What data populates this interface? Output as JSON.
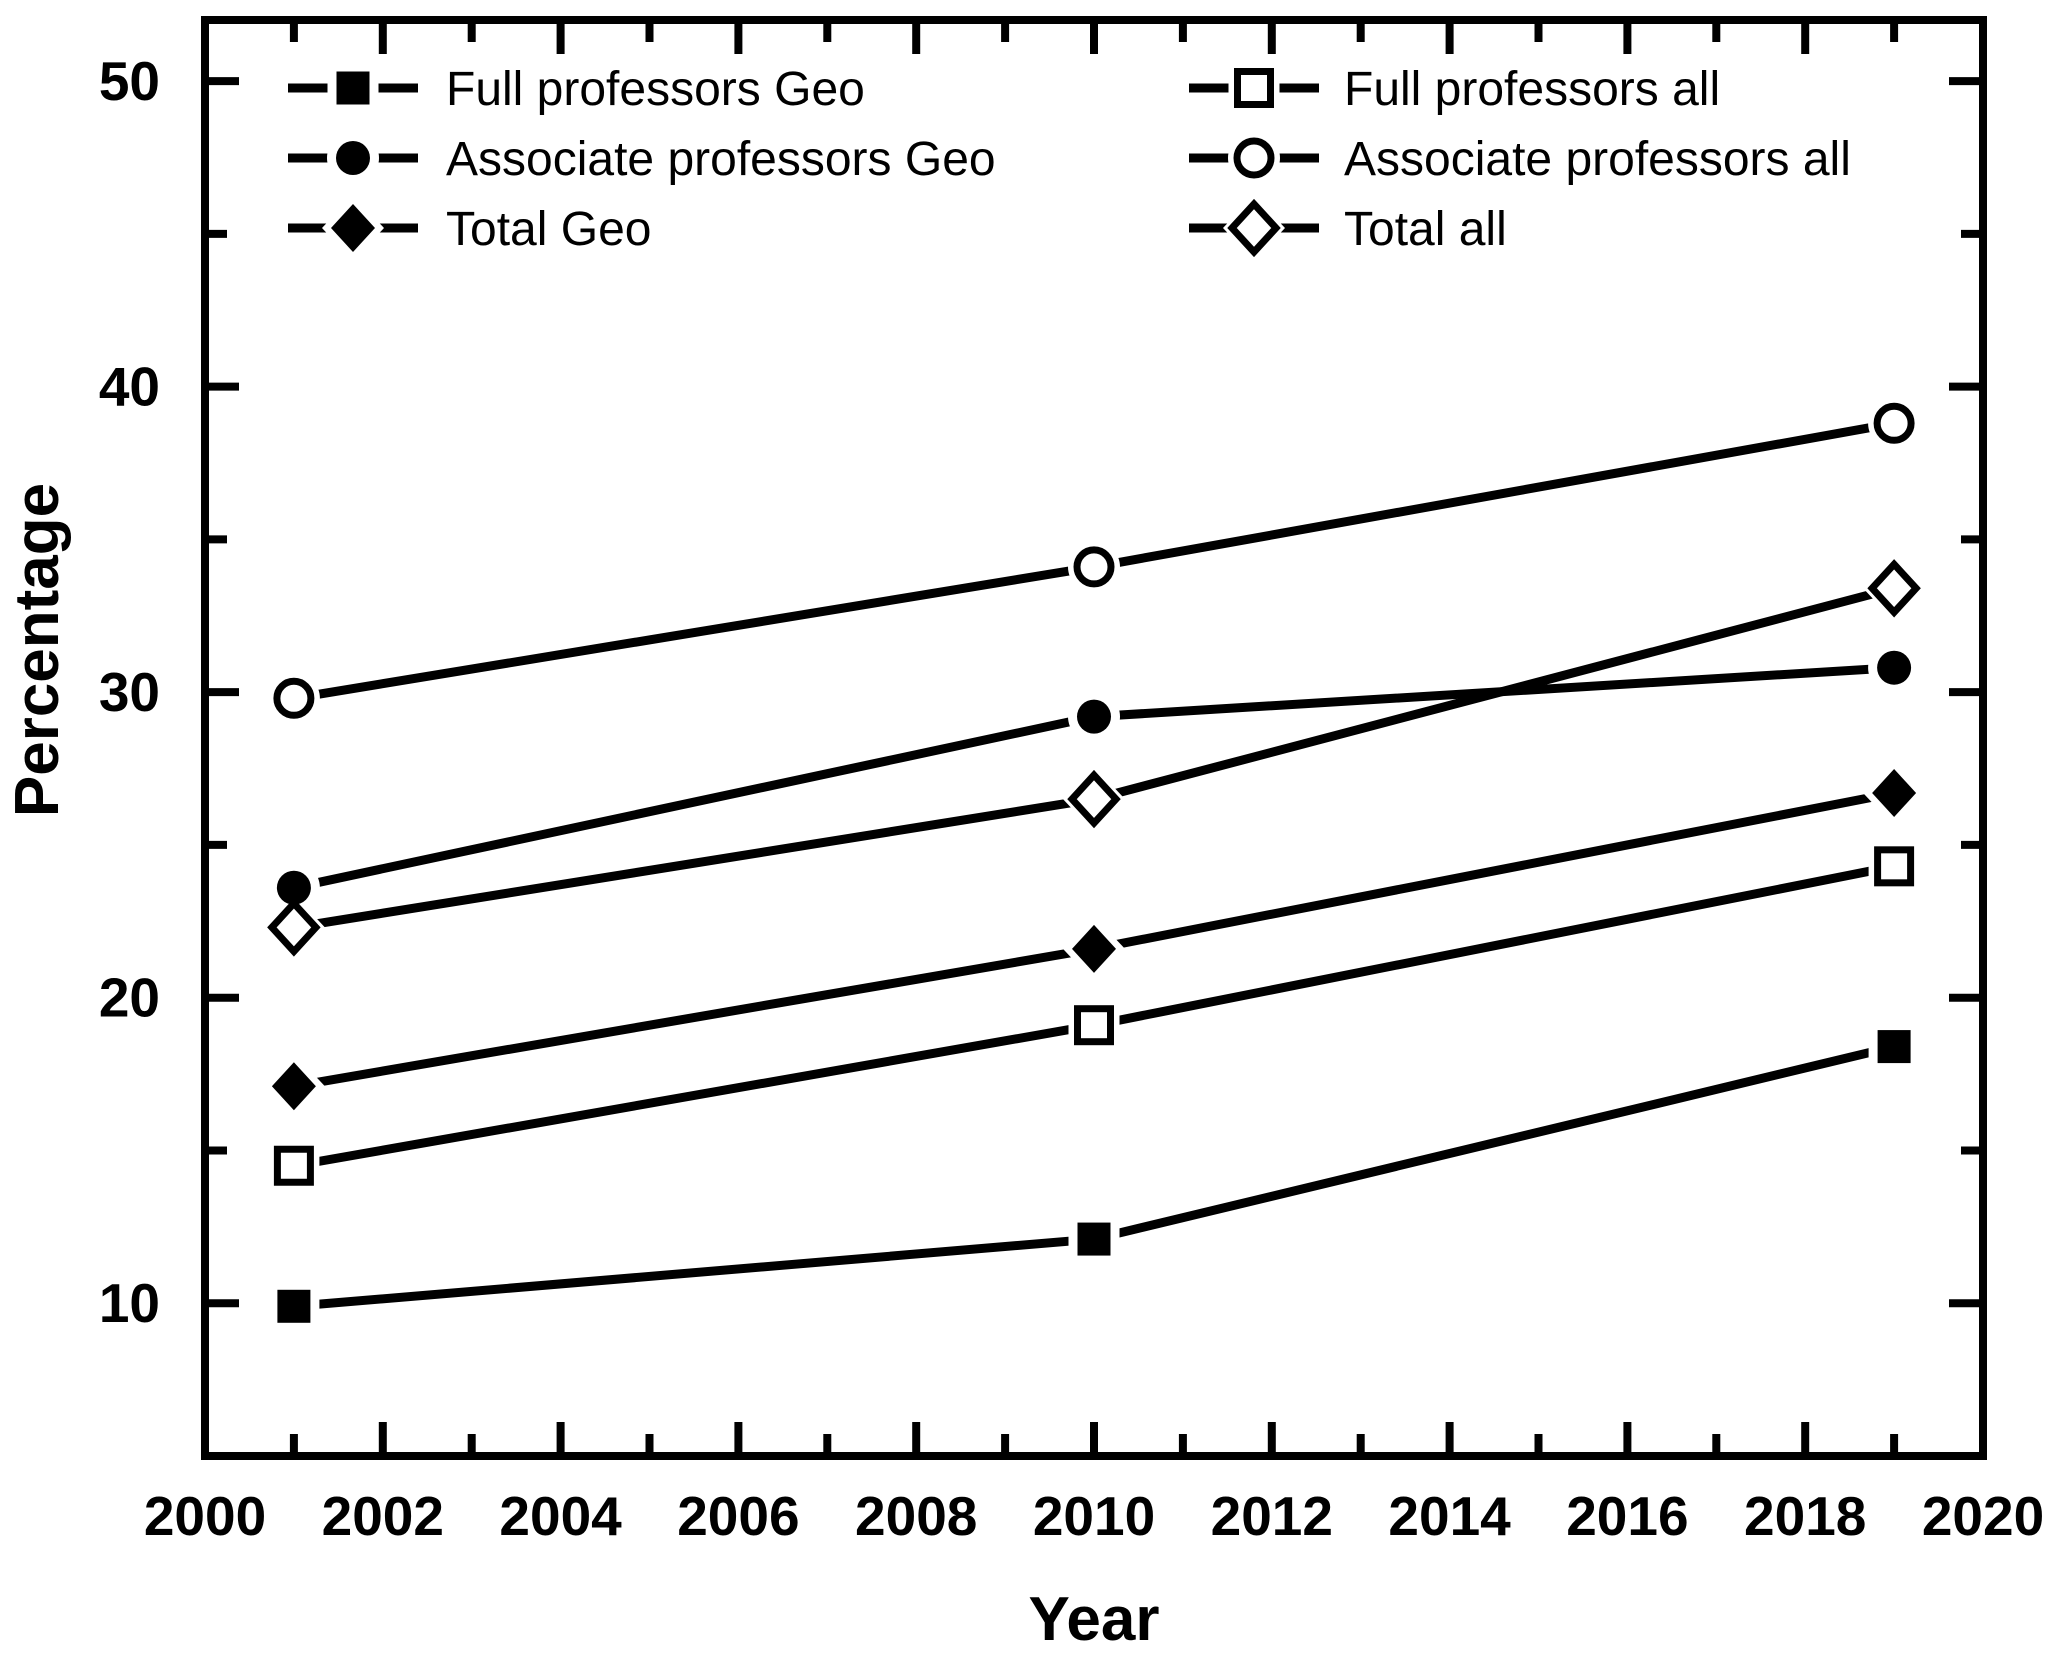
{
  "chart_data": {
    "type": "line",
    "title": "",
    "xlabel": "Year",
    "ylabel": "Percentage",
    "grid": false,
    "colors": {
      "foreground": "#000000",
      "background": "#ffffff"
    },
    "x": [
      2001,
      2010,
      2019
    ],
    "series": [
      {
        "name": "Full professors Geo",
        "marker": "square",
        "fill": "filled",
        "values": [
          9.9,
          12.1,
          18.4
        ]
      },
      {
        "name": "Associate professors Geo",
        "marker": "circle",
        "fill": "filled",
        "values": [
          23.6,
          29.2,
          30.8
        ]
      },
      {
        "name": "Total Geo",
        "marker": "diamond",
        "fill": "filled",
        "values": [
          17.1,
          21.6,
          26.7
        ]
      },
      {
        "name": "Full professors all",
        "marker": "square",
        "fill": "open",
        "values": [
          14.5,
          19.1,
          24.3
        ]
      },
      {
        "name": "Associate professors all",
        "marker": "circle",
        "fill": "open",
        "values": [
          29.8,
          34.1,
          38.8
        ]
      },
      {
        "name": "Total all",
        "marker": "diamond",
        "fill": "open",
        "values": [
          22.3,
          26.5,
          33.4
        ]
      }
    ],
    "x_axis": {
      "range": [
        2000,
        2020
      ],
      "major_ticks": [
        2000,
        2002,
        2004,
        2006,
        2008,
        2010,
        2012,
        2014,
        2016,
        2018,
        2020
      ],
      "minor_ticks": [
        2001,
        2003,
        2005,
        2007,
        2009,
        2011,
        2013,
        2015,
        2017,
        2019
      ],
      "tick_labels": [
        "2000",
        "2002",
        "2004",
        "2006",
        "2008",
        "2010",
        "2012",
        "2014",
        "2016",
        "2018",
        "2020"
      ]
    },
    "y_axis": {
      "range": [
        5,
        52
      ],
      "major_ticks": [
        10,
        20,
        30,
        40,
        50
      ],
      "minor_ticks": [
        15,
        25,
        35,
        45
      ],
      "tick_labels": [
        "10",
        "20",
        "30",
        "40",
        "50"
      ]
    },
    "legend": {
      "position": "top-inside",
      "columns": [
        [
          "Full professors Geo",
          "Associate professors Geo",
          "Total Geo"
        ],
        [
          "Full professors all",
          "Associate professors all",
          "Total all"
        ]
      ]
    }
  }
}
